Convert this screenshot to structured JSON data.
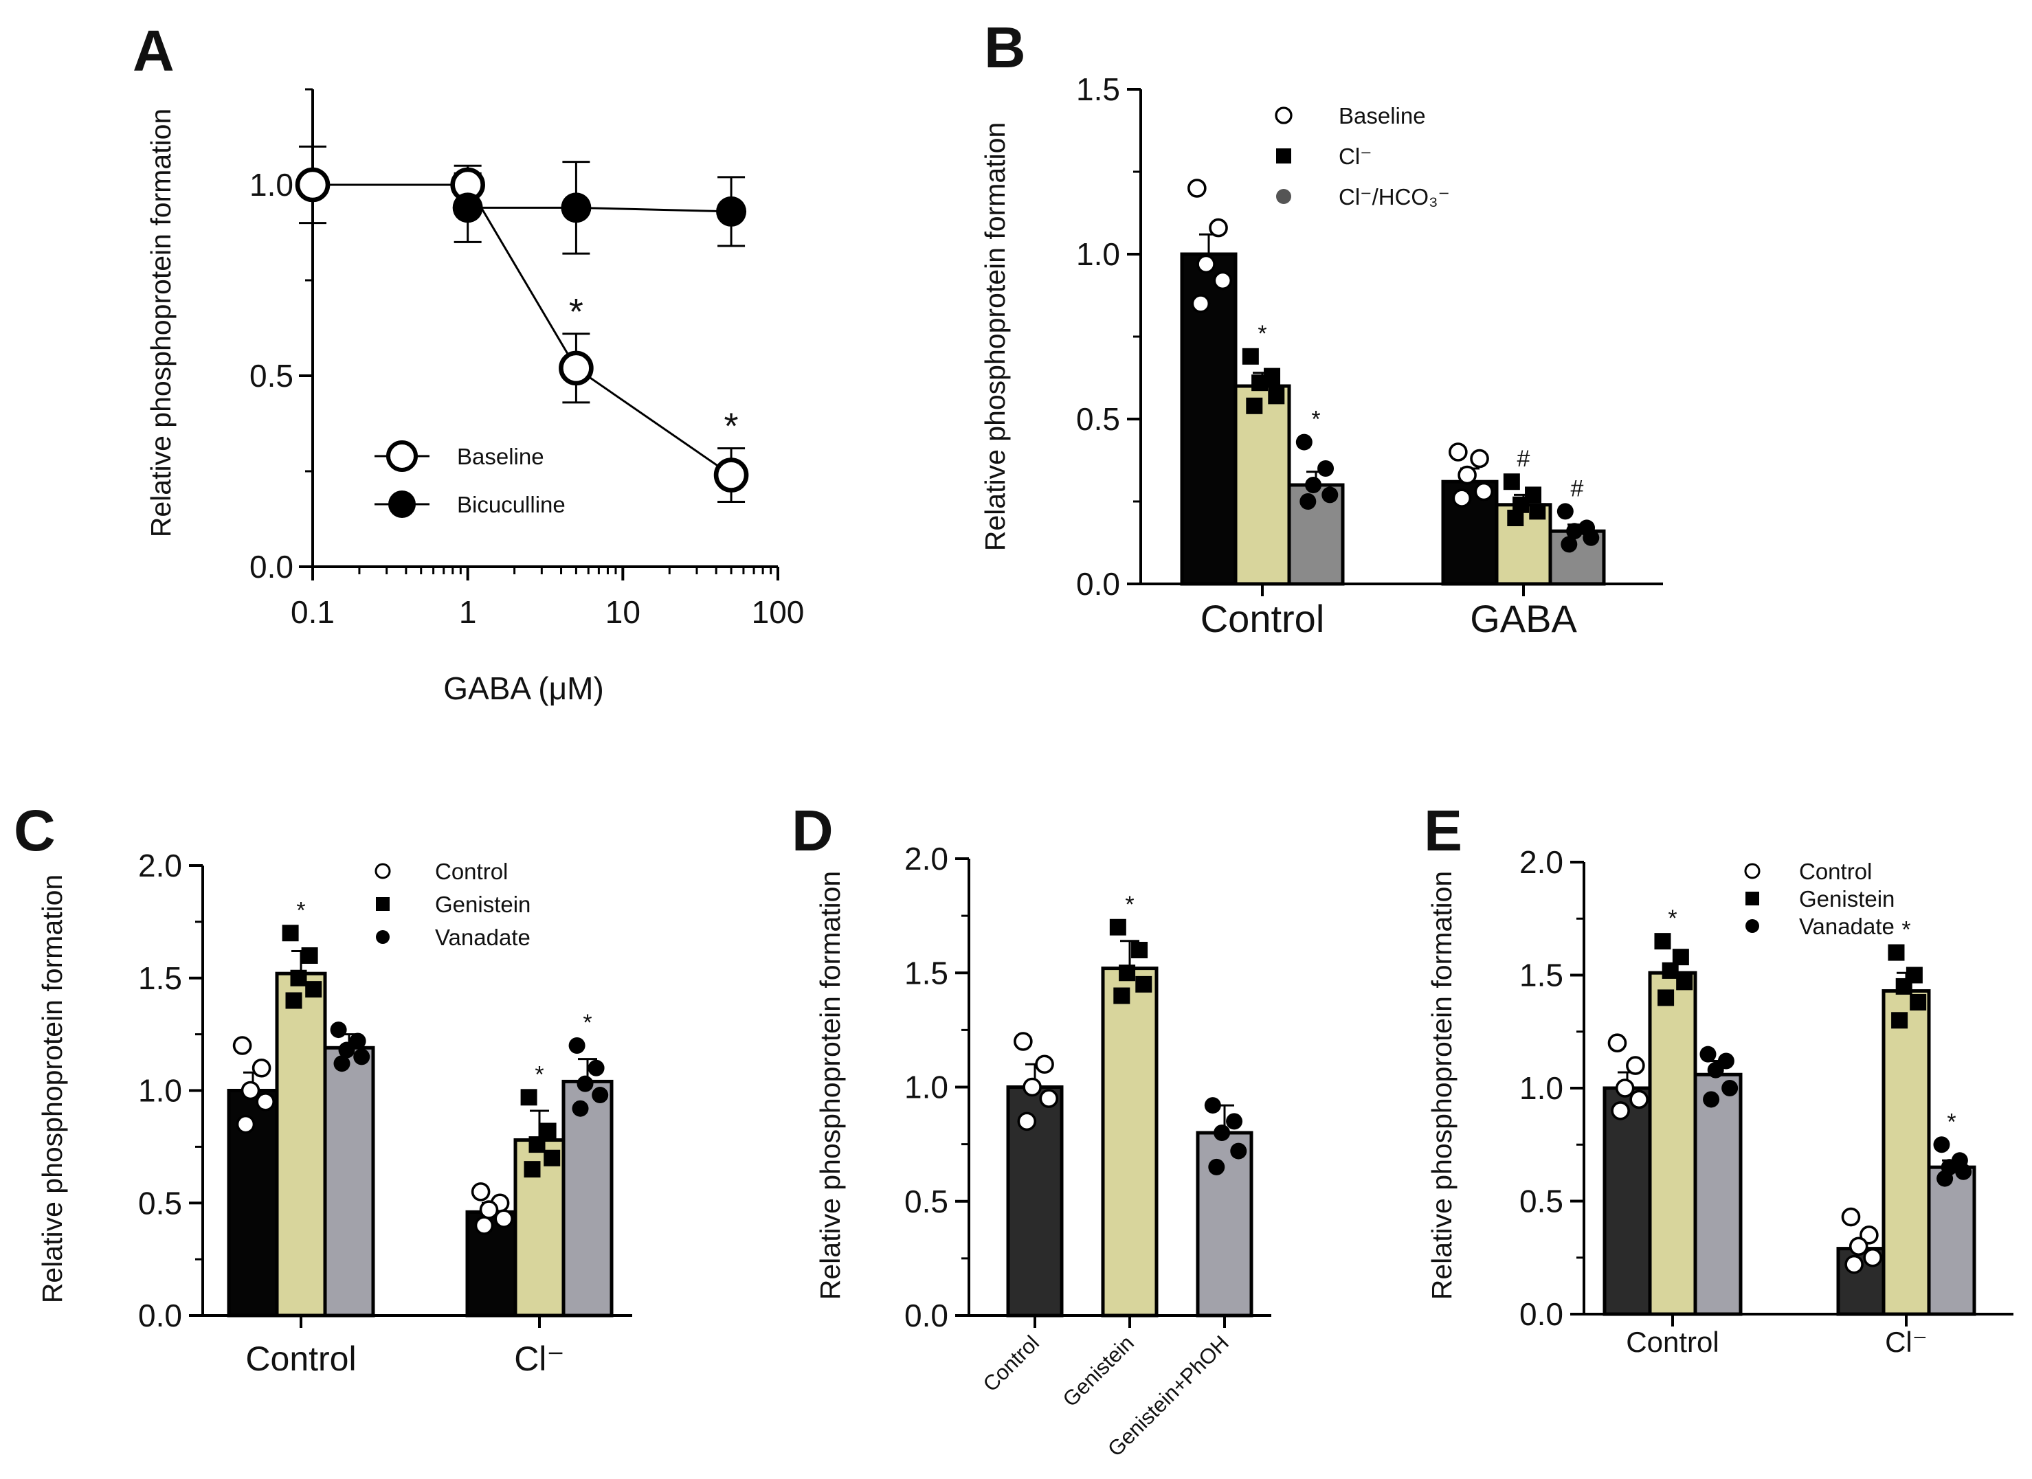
{
  "chart_data": [
    {
      "panel": "A",
      "type": "line",
      "xscale": "log",
      "xlabel": "GABA (μM)",
      "ylabel": "Relative phosphoprotein formation",
      "xlim": [
        0.1,
        100
      ],
      "ylim": [
        0,
        1.25
      ],
      "xticks": [
        "0.1",
        "1",
        "10",
        "100"
      ],
      "yticks": [
        "0.0",
        "0.5",
        "1.0"
      ],
      "legend": "bottom-center",
      "series": [
        {
          "name": "Baseline",
          "marker": "open-circle",
          "x": [
            0.1,
            1,
            5,
            50
          ],
          "y": [
            1.0,
            1.0,
            0.52,
            0.24
          ],
          "err": [
            0.1,
            0.05,
            0.09,
            0.07
          ],
          "sig": [
            "",
            "",
            "*",
            "*"
          ]
        },
        {
          "name": "Bicuculline",
          "marker": "filled-circle",
          "x": [
            1,
            5,
            50
          ],
          "y": [
            0.94,
            0.94,
            0.93
          ],
          "err": [
            0.09,
            0.12,
            0.09
          ],
          "sig": [
            "",
            "",
            ""
          ]
        }
      ]
    },
    {
      "panel": "B",
      "type": "bar",
      "ylabel": "Relative phosphoprotein  formation",
      "ylim": [
        0,
        1.5
      ],
      "yticks": [
        "0.0",
        "0.5",
        "1.0",
        "1.5"
      ],
      "categories": [
        "Control",
        "GABA"
      ],
      "legend": "top",
      "series": [
        {
          "name": "Baseline",
          "marker": "open-circle",
          "color": "#050505",
          "values": [
            1.0,
            0.31
          ],
          "err": [
            0.06,
            0.04
          ],
          "sig": [
            "",
            ""
          ],
          "points": [
            [
              1.2,
              1.08,
              0.97,
              0.92,
              0.85
            ],
            [
              0.4,
              0.38,
              0.33,
              0.28,
              0.26
            ]
          ]
        },
        {
          "name": "Cl⁻",
          "marker": "filled-square",
          "color": "#d8d59c",
          "values": [
            0.6,
            0.24
          ],
          "err": [
            0.04,
            0.03
          ],
          "sig": [
            "*",
            "#"
          ],
          "points": [
            [
              0.69,
              0.63,
              0.61,
              0.57,
              0.54
            ],
            [
              0.31,
              0.27,
              0.24,
              0.22,
              0.2
            ]
          ]
        },
        {
          "name": "Cl⁻/HCO₃⁻",
          "marker": "filled-circle",
          "color": "#8a8a8a",
          "values": [
            0.3,
            0.16
          ],
          "err": [
            0.04,
            0.02
          ],
          "sig": [
            "*",
            "#"
          ],
          "points": [
            [
              0.43,
              0.35,
              0.3,
              0.27,
              0.25
            ],
            [
              0.22,
              0.17,
              0.16,
              0.14,
              0.12
            ]
          ]
        }
      ]
    },
    {
      "panel": "C",
      "type": "bar",
      "ylabel": "Relative phosphoprotein  formation",
      "ylim": [
        0,
        2.0
      ],
      "yticks": [
        "0.0",
        "0.5",
        "1.0",
        "1.5",
        "2.0"
      ],
      "categories": [
        "Control",
        "Cl⁻"
      ],
      "legend": "top-right",
      "series": [
        {
          "name": "Control",
          "marker": "open-circle",
          "color": "#050505",
          "values": [
            1.0,
            0.46
          ],
          "err": [
            0.08,
            0.04
          ],
          "sig": [
            "",
            ""
          ],
          "points": [
            [
              1.2,
              1.1,
              1.0,
              0.95,
              0.85
            ],
            [
              0.55,
              0.5,
              0.47,
              0.43,
              0.4
            ]
          ]
        },
        {
          "name": "Genistein",
          "marker": "filled-square",
          "color": "#d8d59c",
          "values": [
            1.52,
            0.78
          ],
          "err": [
            0.1,
            0.13
          ],
          "sig": [
            "*",
            "*"
          ],
          "points": [
            [
              1.7,
              1.6,
              1.5,
              1.45,
              1.4
            ],
            [
              0.97,
              0.82,
              0.76,
              0.7,
              0.65
            ]
          ]
        },
        {
          "name": "Vanadate",
          "marker": "filled-circle",
          "color": "#a2a2aa",
          "values": [
            1.19,
            1.04
          ],
          "err": [
            0.06,
            0.1
          ],
          "sig": [
            "",
            "*"
          ],
          "points": [
            [
              1.27,
              1.22,
              1.18,
              1.15,
              1.12
            ],
            [
              1.2,
              1.1,
              1.03,
              0.98,
              0.92
            ]
          ]
        }
      ]
    },
    {
      "panel": "D",
      "type": "bar",
      "ylabel": "Relative phosphoprotein formation",
      "ylim": [
        0,
        2.0
      ],
      "yticks": [
        "0.0",
        "0.5",
        "1.0",
        "1.5",
        "2.0"
      ],
      "categories": [
        "Control",
        "Genistein",
        "Genistein+PhOH"
      ],
      "colors": [
        "#2b2b2b",
        "#d8d59c",
        "#a2a2aa"
      ],
      "markers": [
        "open-circle",
        "filled-square",
        "filled-circle"
      ],
      "values": [
        1.0,
        1.52,
        0.8
      ],
      "err": [
        0.1,
        0.12,
        0.12
      ],
      "sig": [
        "",
        "*",
        ""
      ],
      "points": [
        [
          1.2,
          1.1,
          1.0,
          0.95,
          0.85
        ],
        [
          1.7,
          1.6,
          1.5,
          1.45,
          1.4
        ],
        [
          0.92,
          0.85,
          0.8,
          0.72,
          0.65
        ]
      ]
    },
    {
      "panel": "E",
      "type": "bar",
      "ylabel": "Relative phosphoprotein formation",
      "ylim": [
        0,
        2.0
      ],
      "yticks": [
        "0.0",
        "0.5",
        "1.0",
        "1.5",
        "2.0"
      ],
      "categories": [
        "Control",
        "Cl⁻"
      ],
      "legend": "top-right",
      "series": [
        {
          "name": "Control",
          "marker": "open-circle",
          "color": "#2b2b2b",
          "values": [
            1.0,
            0.29
          ],
          "err": [
            0.07,
            0.03
          ],
          "sig": [
            "",
            ""
          ],
          "points": [
            [
              1.2,
              1.1,
              1.0,
              0.95,
              0.9
            ],
            [
              0.43,
              0.35,
              0.3,
              0.25,
              0.22
            ]
          ]
        },
        {
          "name": "Genistein",
          "marker": "filled-square",
          "color": "#d8d59c",
          "values": [
            1.51,
            1.43
          ],
          "err": [
            0.04,
            0.08
          ],
          "sig": [
            "*",
            "*"
          ],
          "points": [
            [
              1.65,
              1.58,
              1.52,
              1.47,
              1.4
            ],
            [
              1.6,
              1.5,
              1.45,
              1.38,
              1.3
            ]
          ]
        },
        {
          "name": "Vanadate",
          "marker": "filled-circle",
          "color": "#a2a2aa",
          "values": [
            1.06,
            0.65
          ],
          "err": [
            0.06,
            0.03
          ],
          "sig": [
            "",
            "*"
          ],
          "points": [
            [
              1.15,
              1.12,
              1.08,
              1.0,
              0.95
            ],
            [
              0.75,
              0.68,
              0.65,
              0.63,
              0.6
            ]
          ]
        }
      ]
    }
  ]
}
